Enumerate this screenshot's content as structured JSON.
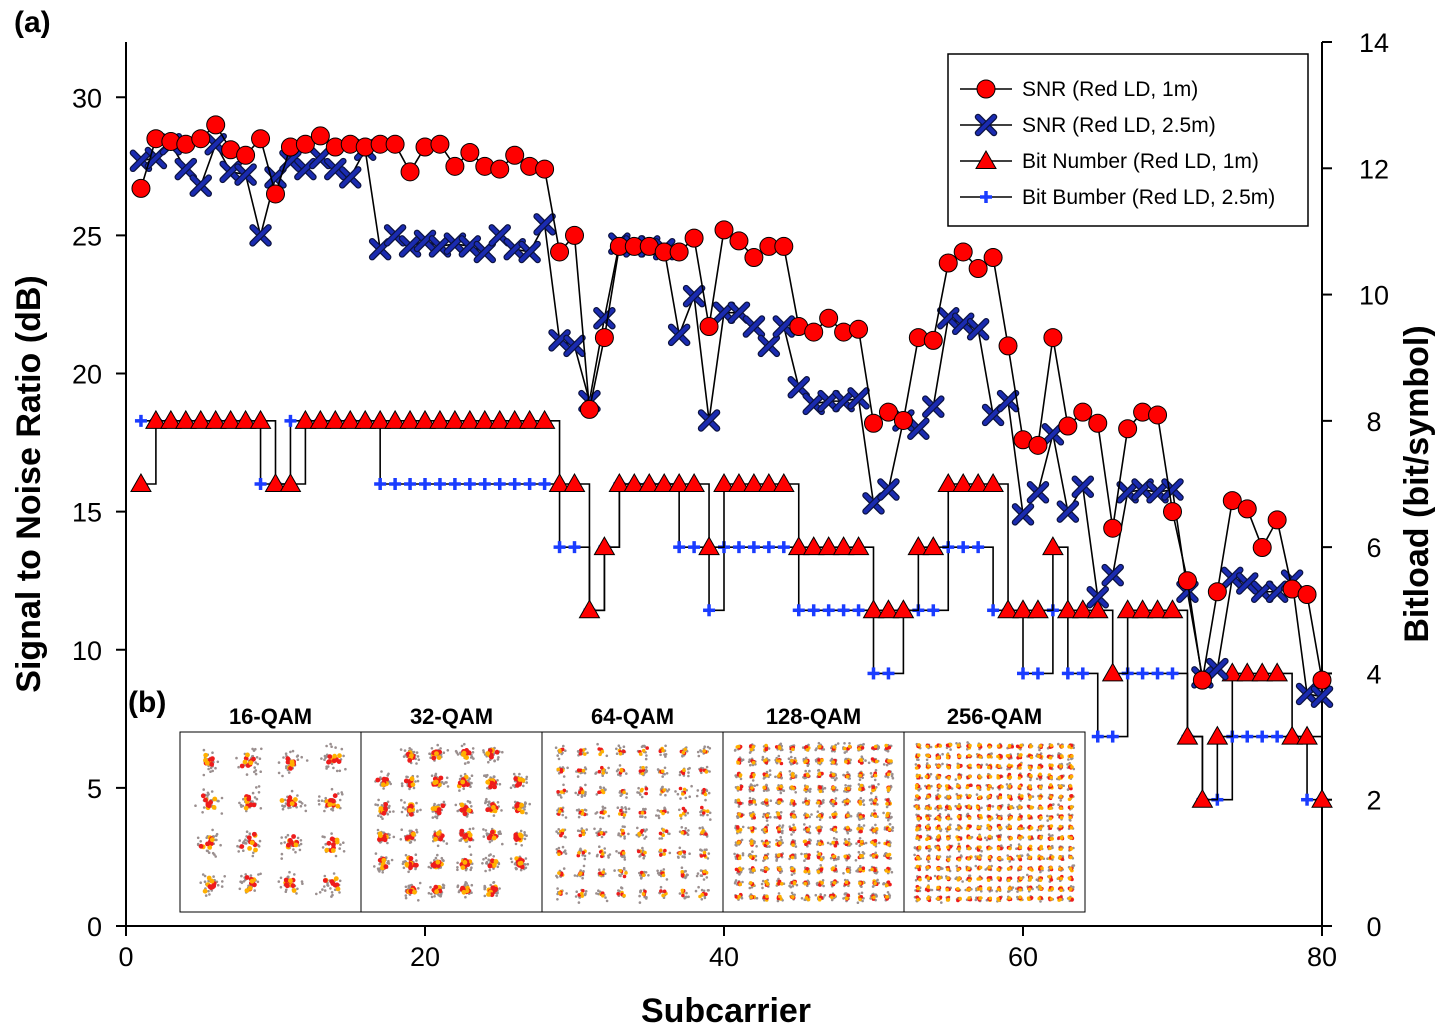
{
  "chart_data": {
    "type": "line",
    "panel_a_label": "(a)",
    "panel_b_label": "(b)",
    "xlabel": "Subcarrier",
    "ylabel_left": "Signal to Noise Ratio (dB)",
    "ylabel_right": "Bitload (bit/symbol)",
    "xlim": [
      0,
      80
    ],
    "ylim_left": [
      0,
      32
    ],
    "ylim_right": [
      0,
      14
    ],
    "x_ticks": [
      "0",
      "20",
      "40",
      "60",
      "80"
    ],
    "y_left_ticks": [
      "0",
      "5",
      "10",
      "15",
      "20",
      "25",
      "30"
    ],
    "y_right_ticks": [
      "0",
      "2",
      "4",
      "6",
      "8",
      "10",
      "12",
      "14"
    ],
    "x": [
      1,
      2,
      3,
      4,
      5,
      6,
      7,
      8,
      9,
      10,
      11,
      12,
      13,
      14,
      15,
      16,
      17,
      18,
      19,
      20,
      21,
      22,
      23,
      24,
      25,
      26,
      27,
      28,
      29,
      30,
      31,
      32,
      33,
      34,
      35,
      36,
      37,
      38,
      39,
      40,
      41,
      42,
      43,
      44,
      45,
      46,
      47,
      48,
      49,
      50,
      51,
      52,
      53,
      54,
      55,
      56,
      57,
      58,
      59,
      60,
      61,
      62,
      63,
      64,
      65,
      66,
      67,
      68,
      69,
      70,
      71,
      72,
      73,
      74,
      75,
      76,
      77,
      78,
      79,
      80
    ],
    "series": [
      {
        "name": "SNR (Red LD, 1m)",
        "axis": "left",
        "marker": "circle",
        "color": "#ff0000",
        "values": [
          26.7,
          28.5,
          28.4,
          28.3,
          28.5,
          29.0,
          28.1,
          27.9,
          28.5,
          26.5,
          28.2,
          28.3,
          28.6,
          28.2,
          28.3,
          28.2,
          28.3,
          28.3,
          27.3,
          28.2,
          28.3,
          27.5,
          28.0,
          27.5,
          27.4,
          27.9,
          27.5,
          27.4,
          24.4,
          25.0,
          18.7,
          21.3,
          24.6,
          24.6,
          24.6,
          24.4,
          24.4,
          24.9,
          21.7,
          25.2,
          24.8,
          24.2,
          24.6,
          24.6,
          21.7,
          21.5,
          22.0,
          21.5,
          21.6,
          18.2,
          18.6,
          18.3,
          21.3,
          21.2,
          24.0,
          24.4,
          23.8,
          24.2,
          21.0,
          17.6,
          17.4,
          21.3,
          18.1,
          18.6,
          18.2,
          14.4,
          18.0,
          18.6,
          18.5,
          15.0,
          12.5,
          8.9,
          12.1,
          15.4,
          15.1,
          13.7,
          14.7,
          12.2,
          12.0,
          8.9
        ]
      },
      {
        "name": "SNR (Red LD, 2.5m)",
        "axis": "left",
        "marker": "x",
        "color": "#1a2bb0",
        "values": [
          27.7,
          27.8,
          28.3,
          27.4,
          26.8,
          28.3,
          27.3,
          27.2,
          25.0,
          27.1,
          27.7,
          27.4,
          27.8,
          27.4,
          27.1,
          28.1,
          24.5,
          25.0,
          24.6,
          24.8,
          24.6,
          24.7,
          24.6,
          24.4,
          25.0,
          24.5,
          24.4,
          25.4,
          21.2,
          21.0,
          19.0,
          22.0,
          24.7,
          24.6,
          24.6,
          24.5,
          21.4,
          22.8,
          18.3,
          22.2,
          22.2,
          21.7,
          21.0,
          21.7,
          19.5,
          18.9,
          19.0,
          19.0,
          19.1,
          15.3,
          15.8,
          18.3,
          18.0,
          18.8,
          22.0,
          21.8,
          21.6,
          18.5,
          19.0,
          14.9,
          15.7,
          17.8,
          15.0,
          15.9,
          11.9,
          12.7,
          15.7,
          15.8,
          15.7,
          15.8,
          12.1,
          9.0,
          9.3,
          12.6,
          12.4,
          12.1,
          12.1,
          12.5,
          8.4,
          8.3
        ]
      },
      {
        "name": "Bit Number (Red LD, 1m)",
        "axis": "right",
        "marker": "triangle",
        "color": "#ff0000",
        "values": [
          7,
          8,
          8,
          8,
          8,
          8,
          8,
          8,
          8,
          7,
          7,
          8,
          8,
          8,
          8,
          8,
          8,
          8,
          8,
          8,
          8,
          8,
          8,
          8,
          8,
          8,
          8,
          8,
          7,
          7,
          5,
          6,
          7,
          7,
          7,
          7,
          7,
          7,
          6,
          7,
          7,
          7,
          7,
          7,
          6,
          6,
          6,
          6,
          6,
          5,
          5,
          5,
          6,
          6,
          7,
          7,
          7,
          7,
          5,
          5,
          5,
          6,
          5,
          5,
          5,
          4,
          5,
          5,
          5,
          5,
          3,
          2,
          3,
          4,
          4,
          4,
          4,
          3,
          3,
          2
        ]
      },
      {
        "name": "Bit Bumber (Red LD, 2.5m)",
        "axis": "right",
        "marker": "plus",
        "color": "#1a3cff",
        "values": [
          8,
          8,
          8,
          8,
          8,
          8,
          8,
          8,
          7,
          7,
          8,
          8,
          8,
          8,
          8,
          8,
          7,
          7,
          7,
          7,
          7,
          7,
          7,
          7,
          7,
          7,
          7,
          7,
          6,
          6,
          5,
          6,
          7,
          7,
          7,
          7,
          6,
          6,
          5,
          6,
          6,
          6,
          6,
          6,
          5,
          5,
          5,
          5,
          5,
          4,
          4,
          5,
          5,
          5,
          6,
          6,
          6,
          5,
          5,
          4,
          4,
          5,
          4,
          4,
          3,
          3,
          4,
          4,
          4,
          4,
          3,
          2,
          2,
          3,
          3,
          3,
          3,
          3,
          2,
          2
        ]
      }
    ],
    "inset_labels": [
      "16-QAM",
      "32-QAM",
      "64-QAM",
      "128-QAM",
      "256-QAM"
    ]
  }
}
